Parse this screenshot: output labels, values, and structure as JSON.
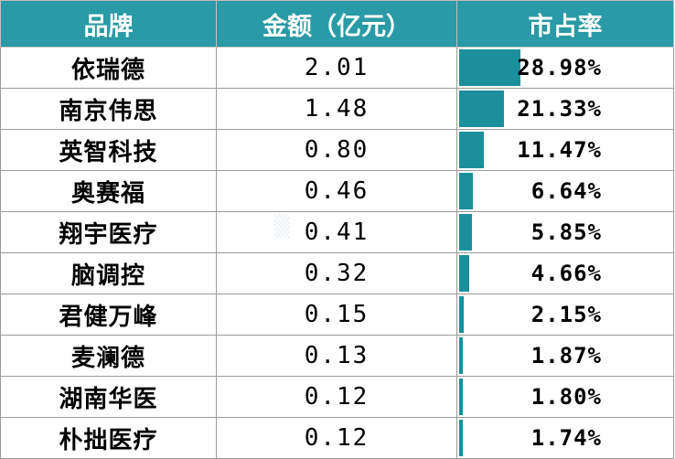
{
  "colors": {
    "header_bg": "#2a9aa6",
    "header_text": "#ffffff",
    "bar": "#1b8f9c"
  },
  "headers": {
    "brand": "品牌",
    "amount": "金额（亿元）",
    "share": "市占率"
  },
  "chart_data": {
    "type": "table",
    "columns": [
      "品牌",
      "金额（亿元）",
      "市占率"
    ],
    "rows": [
      {
        "brand": "依瑞德",
        "amount": "2.01",
        "share": "28.98%",
        "share_value": 28.98
      },
      {
        "brand": "南京伟思",
        "amount": "1.48",
        "share": "21.33%",
        "share_value": 21.33
      },
      {
        "brand": "英智科技",
        "amount": "0.80",
        "share": "11.47%",
        "share_value": 11.47
      },
      {
        "brand": "奥赛福",
        "amount": "0.46",
        "share": "6.64%",
        "share_value": 6.64
      },
      {
        "brand": "翔宇医疗",
        "amount": "0.41",
        "share": "5.85%",
        "share_value": 5.85
      },
      {
        "brand": "脑调控",
        "amount": "0.32",
        "share": "4.66%",
        "share_value": 4.66
      },
      {
        "brand": "君健万峰",
        "amount": "0.15",
        "share": "2.15%",
        "share_value": 2.15
      },
      {
        "brand": "麦澜德",
        "amount": "0.13",
        "share": "1.87%",
        "share_value": 1.87
      },
      {
        "brand": "湖南华医",
        "amount": "0.12",
        "share": "1.80%",
        "share_value": 1.8
      },
      {
        "brand": "朴拙医疗",
        "amount": "0.12",
        "share": "1.74%",
        "share_value": 1.74
      }
    ]
  }
}
